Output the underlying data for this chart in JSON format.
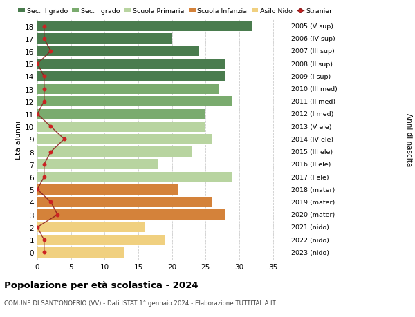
{
  "ages": [
    18,
    17,
    16,
    15,
    14,
    13,
    12,
    11,
    10,
    9,
    8,
    7,
    6,
    5,
    4,
    3,
    2,
    1,
    0
  ],
  "right_labels": [
    "2005 (V sup)",
    "2006 (IV sup)",
    "2007 (III sup)",
    "2008 (II sup)",
    "2009 (I sup)",
    "2010 (III med)",
    "2011 (II med)",
    "2012 (I med)",
    "2013 (V ele)",
    "2014 (IV ele)",
    "2015 (III ele)",
    "2016 (II ele)",
    "2017 (I ele)",
    "2018 (mater)",
    "2019 (mater)",
    "2020 (mater)",
    "2021 (nido)",
    "2022 (nido)",
    "2023 (nido)"
  ],
  "bar_values": [
    32,
    20,
    24,
    28,
    28,
    27,
    29,
    25,
    25,
    26,
    23,
    18,
    29,
    21,
    26,
    28,
    16,
    19,
    13
  ],
  "bar_colors": [
    "#4a7c4e",
    "#4a7c4e",
    "#4a7c4e",
    "#4a7c4e",
    "#4a7c4e",
    "#7aab6e",
    "#7aab6e",
    "#7aab6e",
    "#b8d4a0",
    "#b8d4a0",
    "#b8d4a0",
    "#b8d4a0",
    "#b8d4a0",
    "#d4823a",
    "#d4823a",
    "#d4823a",
    "#f0d080",
    "#f0d080",
    "#f0d080"
  ],
  "stranieri_values": [
    1,
    1,
    2,
    0,
    1,
    1,
    1,
    0,
    2,
    4,
    2,
    1,
    1,
    0,
    2,
    3,
    0,
    1,
    1
  ],
  "title": "Popolazione per età scolastica - 2024",
  "subtitle": "COMUNE DI SANT'ONOFRIO (VV) - Dati ISTAT 1° gennaio 2024 - Elaborazione TUTTITALIA.IT",
  "ylabel": "Età alunni",
  "right_ylabel": "Anni di nascita",
  "xlim": [
    0,
    37
  ],
  "xticks": [
    0,
    5,
    10,
    15,
    20,
    25,
    30,
    35
  ],
  "legend_labels": [
    "Sec. II grado",
    "Sec. I grado",
    "Scuola Primaria",
    "Scuola Infanzia",
    "Asilo Nido",
    "Stranieri"
  ],
  "legend_colors": [
    "#4a7c4e",
    "#7aab6e",
    "#b8d4a0",
    "#d4823a",
    "#f0d080",
    "#b22222"
  ],
  "bg_color": "#ffffff",
  "grid_color": "#cccccc",
  "bar_height": 0.82,
  "stranieri_line_color": "#8b1a1a",
  "stranieri_marker_color": "#cc2222"
}
